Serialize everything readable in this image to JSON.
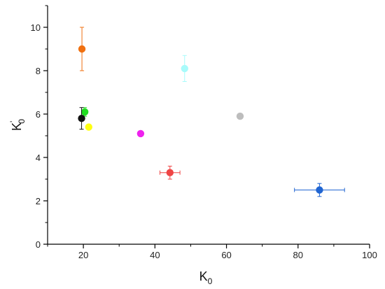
{
  "chart_data": {
    "type": "scatter",
    "title": "",
    "xlabel": {
      "main": "K",
      "sub": "0"
    },
    "ylabel": {
      "main": "K",
      "prime": "'",
      "sub": "0"
    },
    "xlim": [
      10,
      100
    ],
    "ylim": [
      0,
      11
    ],
    "xticks": [
      20,
      40,
      60,
      80,
      100
    ],
    "xtick_labels": [
      "20",
      "40",
      "60",
      "80",
      "100"
    ],
    "yticks": [
      0,
      2,
      4,
      6,
      8,
      10
    ],
    "ytick_labels": [
      "0",
      "2",
      "4",
      "6",
      "8",
      "10"
    ],
    "grid": false,
    "legend": "none",
    "points": [
      {
        "x": 19.6,
        "y": 9.0,
        "color": "#f07010",
        "xerr": 0,
        "yerr": 1.0
      },
      {
        "x": 20.4,
        "y": 6.1,
        "color": "#22dd22",
        "xerr": 0,
        "yerr": 0.2
      },
      {
        "x": 19.5,
        "y": 5.8,
        "color": "#111111",
        "xerr": 0,
        "yerr": 0.5
      },
      {
        "x": 21.5,
        "y": 5.4,
        "color": "#ffff10",
        "xerr": 0,
        "yerr": 0
      },
      {
        "x": 36.0,
        "y": 5.1,
        "color": "#ee22ee",
        "xerr": 0,
        "yerr": 0
      },
      {
        "x": 44.2,
        "y": 3.3,
        "color": "#ef4545",
        "xerr": 2.8,
        "yerr": 0.3
      },
      {
        "x": 48.3,
        "y": 8.1,
        "color": "#a8fbfb",
        "xerr": 0,
        "yerr": 0.6
      },
      {
        "x": 63.8,
        "y": 5.9,
        "color": "#bdbdbd",
        "xerr": 0,
        "yerr": 0
      },
      {
        "x": 86.0,
        "y": 2.5,
        "color": "#2065d2",
        "xerr": 7.0,
        "yerr": 0.3
      }
    ]
  }
}
